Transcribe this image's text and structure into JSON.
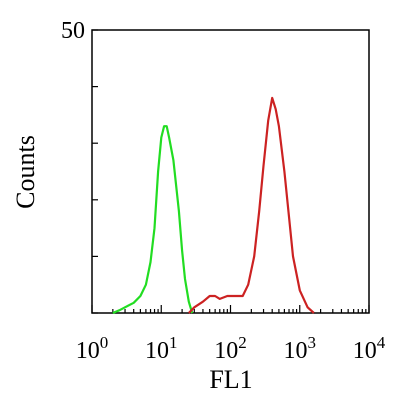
{
  "chart_data": {
    "type": "line",
    "title": "",
    "xlabel": "FL1",
    "ylabel": "Counts",
    "x_scale": "log",
    "xlim": [
      1,
      10000
    ],
    "ylim": [
      0,
      50
    ],
    "x_ticks": [
      {
        "base": "10",
        "exp": "0"
      },
      {
        "base": "10",
        "exp": "1"
      },
      {
        "base": "10",
        "exp": "2"
      },
      {
        "base": "10",
        "exp": "3"
      },
      {
        "base": "10",
        "exp": "4"
      }
    ],
    "y_tick_label": "50",
    "grid": false,
    "legend": "none",
    "series": [
      {
        "color": "#22dd22",
        "points": [
          [
            2.0,
            0
          ],
          [
            2.5,
            0.5
          ],
          [
            3.0,
            1
          ],
          [
            4.0,
            1.8
          ],
          [
            5.0,
            3
          ],
          [
            6.0,
            5
          ],
          [
            7.0,
            9
          ],
          [
            8.0,
            15
          ],
          [
            9.0,
            25
          ],
          [
            10.0,
            31
          ],
          [
            11.0,
            33
          ],
          [
            12.0,
            33
          ],
          [
            13.0,
            31
          ],
          [
            15.0,
            27
          ],
          [
            18.0,
            18
          ],
          [
            20.0,
            11
          ],
          [
            22.0,
            6
          ],
          [
            25.0,
            2
          ],
          [
            28.0,
            0
          ]
        ]
      },
      {
        "color": "#cc2222",
        "points": [
          [
            25,
            0
          ],
          [
            30,
            1
          ],
          [
            40,
            2
          ],
          [
            50,
            3
          ],
          [
            60,
            3
          ],
          [
            70,
            2.5
          ],
          [
            90,
            3
          ],
          [
            120,
            3
          ],
          [
            150,
            3
          ],
          [
            180,
            5
          ],
          [
            220,
            10
          ],
          [
            260,
            18
          ],
          [
            300,
            26
          ],
          [
            350,
            34
          ],
          [
            400,
            38
          ],
          [
            450,
            36
          ],
          [
            500,
            33
          ],
          [
            600,
            25
          ],
          [
            700,
            17
          ],
          [
            800,
            10
          ],
          [
            1000,
            4
          ],
          [
            1300,
            1
          ],
          [
            1600,
            0
          ]
        ]
      }
    ]
  }
}
